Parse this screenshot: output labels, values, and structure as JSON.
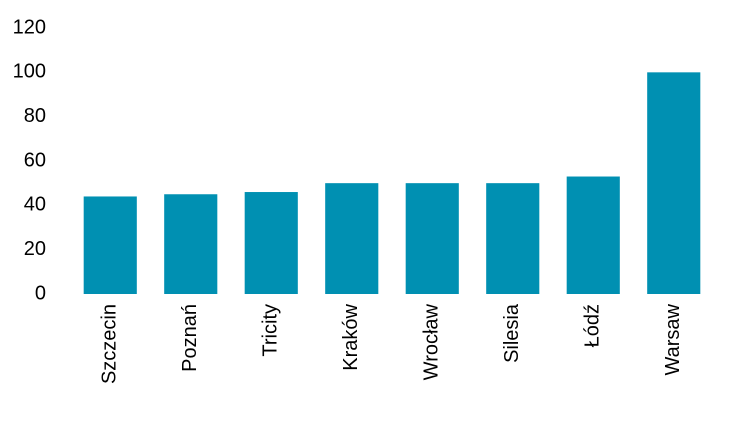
{
  "chart_data": {
    "type": "bar",
    "categories": [
      "Szczecin",
      "Poznań",
      "Tricity",
      "Kraków",
      "Wrocław",
      "Silesia",
      "Łódź",
      "Warsaw"
    ],
    "values": [
      44,
      45,
      46,
      50,
      50,
      50,
      53,
      100
    ],
    "color": "#0090b2",
    "ylim": [
      0,
      120
    ],
    "yticks": [
      0,
      20,
      40,
      60,
      80,
      100,
      120
    ],
    "grid": false
  }
}
